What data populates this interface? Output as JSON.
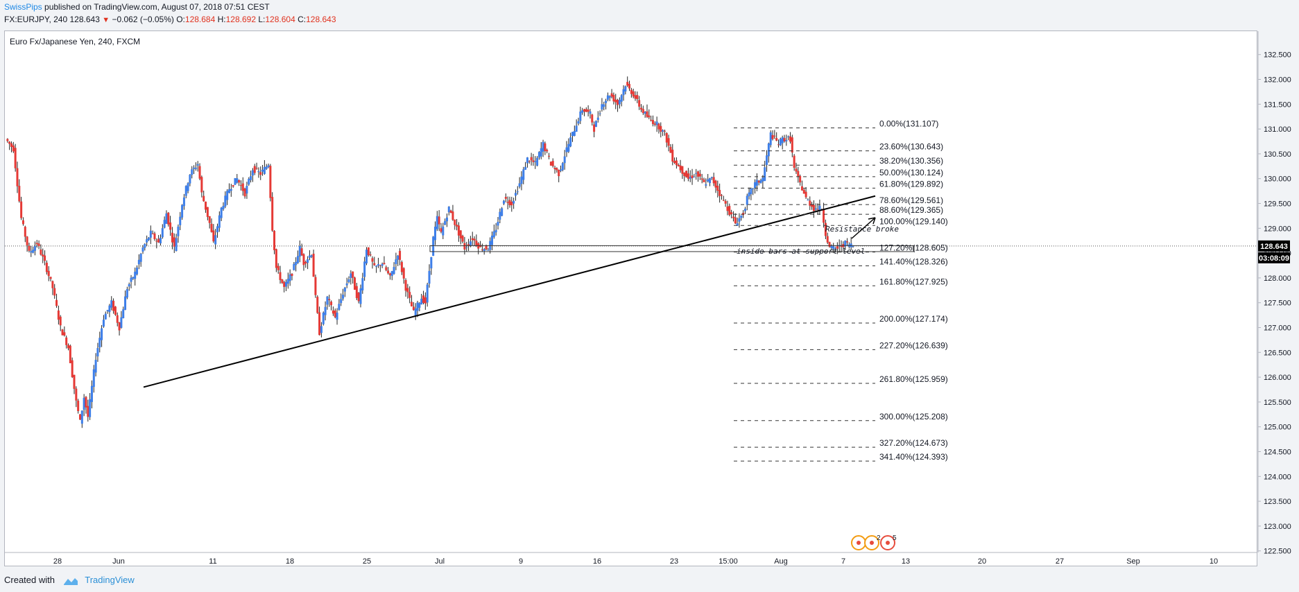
{
  "header": {
    "author": "SwissPips",
    "published_text": "published on TradingView.com, August 07, 2018 07:51 CEST",
    "symbol": "FX:EURJPY, 240",
    "last": "128.643",
    "change": "−0.062 (−0.05%)",
    "open_label": "O:",
    "open": "128.684",
    "high_label": "H:",
    "high": "128.692",
    "low_label": "L:",
    "low": "128.604",
    "close_label": "C:",
    "close": "128.643"
  },
  "chart_title": "Euro Fx/Japanese Yen, 240, FXCM",
  "footer": {
    "created_with": "Created with",
    "brand": "TradingView"
  },
  "price_badge": {
    "price": "128.643",
    "countdown": "03:08:09"
  },
  "annotations": {
    "resistance": "Resistance broke",
    "inside_bars": "inside bars at support level"
  },
  "bottom_badges": [
    "2",
    "5"
  ],
  "colors": {
    "up": "#3d7ee8",
    "down": "#e53935",
    "fib": "#333333",
    "trend": "#000000",
    "badge_bg": "#000000"
  },
  "chart_data": {
    "type": "candlestick",
    "title": "Euro Fx/Japanese Yen, 240, FXCM",
    "y_ticks": [
      "132.500",
      "132.000",
      "131.500",
      "131.000",
      "130.500",
      "130.000",
      "129.500",
      "129.000",
      "128.500",
      "128.000",
      "127.500",
      "127.000",
      "126.500",
      "126.000",
      "125.500",
      "125.000",
      "124.500",
      "124.000",
      "123.500",
      "123.000",
      "122.500"
    ],
    "ylim": [
      122.3,
      132.8
    ],
    "x_ticks": [
      "28",
      "Jun",
      "11",
      "18",
      "25",
      "Jul",
      "9",
      "16",
      "23",
      "15:00",
      "Aug",
      "7",
      "13",
      "20",
      "27",
      "Sep",
      "10"
    ],
    "price_path": [
      [
        0,
        130.8
      ],
      [
        2,
        130.6
      ],
      [
        4,
        129.2
      ],
      [
        6,
        128.5
      ],
      [
        8,
        128.7
      ],
      [
        10,
        128.3
      ],
      [
        12,
        127.8
      ],
      [
        14,
        127.0
      ],
      [
        16,
        126.6
      ],
      [
        18,
        125.5
      ],
      [
        19,
        125.1
      ],
      [
        20,
        125.6
      ],
      [
        21,
        125.2
      ],
      [
        23,
        126.4
      ],
      [
        25,
        127.2
      ],
      [
        27,
        127.5
      ],
      [
        29,
        127.0
      ],
      [
        31,
        127.8
      ],
      [
        33,
        128.1
      ],
      [
        35,
        128.6
      ],
      [
        37,
        128.9
      ],
      [
        39,
        128.7
      ],
      [
        41,
        129.3
      ],
      [
        43,
        128.6
      ],
      [
        45,
        129.5
      ],
      [
        47,
        130.1
      ],
      [
        49,
        130.3
      ],
      [
        50,
        129.7
      ],
      [
        52,
        129.1
      ],
      [
        53,
        128.7
      ],
      [
        55,
        129.4
      ],
      [
        57,
        129.8
      ],
      [
        59,
        130.0
      ],
      [
        61,
        129.7
      ],
      [
        63,
        130.2
      ],
      [
        65,
        130.1
      ],
      [
        67,
        130.3
      ],
      [
        68,
        129.0
      ],
      [
        69,
        128.2
      ],
      [
        71,
        127.8
      ],
      [
        73,
        128.1
      ],
      [
        75,
        128.6
      ],
      [
        76,
        128.3
      ],
      [
        78,
        128.5
      ],
      [
        79,
        127.6
      ],
      [
        80,
        126.9
      ],
      [
        82,
        127.6
      ],
      [
        84,
        127.2
      ],
      [
        86,
        127.7
      ],
      [
        88,
        128.1
      ],
      [
        90,
        127.5
      ],
      [
        92,
        128.6
      ],
      [
        94,
        128.2
      ],
      [
        96,
        128.3
      ],
      [
        98,
        128.0
      ],
      [
        100,
        128.5
      ],
      [
        102,
        127.8
      ],
      [
        104,
        127.3
      ],
      [
        106,
        127.6
      ],
      [
        107,
        127.5
      ],
      [
        109,
        128.8
      ],
      [
        110,
        129.2
      ],
      [
        111,
        128.9
      ],
      [
        113,
        129.4
      ],
      [
        115,
        129.0
      ],
      [
        117,
        128.6
      ],
      [
        119,
        128.8
      ],
      [
        121,
        128.6
      ],
      [
        123,
        128.6
      ],
      [
        125,
        129.0
      ],
      [
        127,
        129.6
      ],
      [
        129,
        129.5
      ],
      [
        131,
        129.9
      ],
      [
        133,
        130.4
      ],
      [
        135,
        130.3
      ],
      [
        137,
        130.7
      ],
      [
        139,
        130.3
      ],
      [
        141,
        130.1
      ],
      [
        143,
        130.6
      ],
      [
        145,
        131.0
      ],
      [
        147,
        131.4
      ],
      [
        149,
        131.3
      ],
      [
        150,
        131.0
      ],
      [
        152,
        131.5
      ],
      [
        154,
        131.7
      ],
      [
        156,
        131.5
      ],
      [
        158,
        131.9
      ],
      [
        160,
        131.7
      ],
      [
        162,
        131.4
      ],
      [
        164,
        131.2
      ],
      [
        166,
        131.1
      ],
      [
        168,
        130.9
      ],
      [
        170,
        130.4
      ],
      [
        172,
        130.2
      ],
      [
        174,
        130.0
      ],
      [
        176,
        130.1
      ],
      [
        178,
        129.9
      ],
      [
        180,
        130.0
      ],
      [
        182,
        129.7
      ],
      [
        184,
        129.4
      ],
      [
        186,
        129.1
      ],
      [
        188,
        129.3
      ],
      [
        189,
        129.6
      ],
      [
        191,
        129.9
      ],
      [
        193,
        130.0
      ],
      [
        195,
        130.9
      ],
      [
        197,
        130.7
      ],
      [
        198,
        130.8
      ],
      [
        200,
        130.8
      ],
      [
        201,
        130.2
      ],
      [
        202,
        130.0
      ],
      [
        204,
        129.6
      ],
      [
        206,
        129.4
      ],
      [
        208,
        129.4
      ],
      [
        209,
        128.9
      ],
      [
        210,
        128.6
      ],
      [
        212,
        128.6
      ],
      [
        214,
        128.7
      ],
      [
        216,
        128.65
      ]
    ],
    "trendline": {
      "from": {
        "time": "May 31",
        "price": 125.8
      },
      "to": {
        "time": "Aug 10",
        "price": 129.65
      }
    },
    "fibonacci": [
      {
        "label": "0.00%(131.107)",
        "value": 131.107
      },
      {
        "label": "23.60%(130.643)",
        "value": 130.643
      },
      {
        "label": "38.20%(130.356)",
        "value": 130.356
      },
      {
        "label": "50.00%(130.124)",
        "value": 130.124
      },
      {
        "label": "61.80%(129.892)",
        "value": 129.892
      },
      {
        "label": "78.60%(129.561)",
        "value": 129.561
      },
      {
        "label": "88.60%(129.365)",
        "value": 129.365
      },
      {
        "label": "100.00%(129.140)",
        "value": 129.14
      },
      {
        "label": "127.20%(128.605)",
        "value": 128.605
      },
      {
        "label": "141.40%(128.326)",
        "value": 128.326
      },
      {
        "label": "161.80%(127.925)",
        "value": 127.925
      },
      {
        "label": "200.00%(127.174)",
        "value": 127.174
      },
      {
        "label": "227.20%(126.639)",
        "value": 126.639
      },
      {
        "label": "261.80%(125.959)",
        "value": 125.959
      },
      {
        "label": "300.00%(125.208)",
        "value": 125.208
      },
      {
        "label": "327.20%(124.673)",
        "value": 124.673
      },
      {
        "label": "341.40%(124.393)",
        "value": 124.393
      }
    ],
    "support_zone": [
      128.53,
      128.65
    ],
    "last_price": 128.643
  }
}
